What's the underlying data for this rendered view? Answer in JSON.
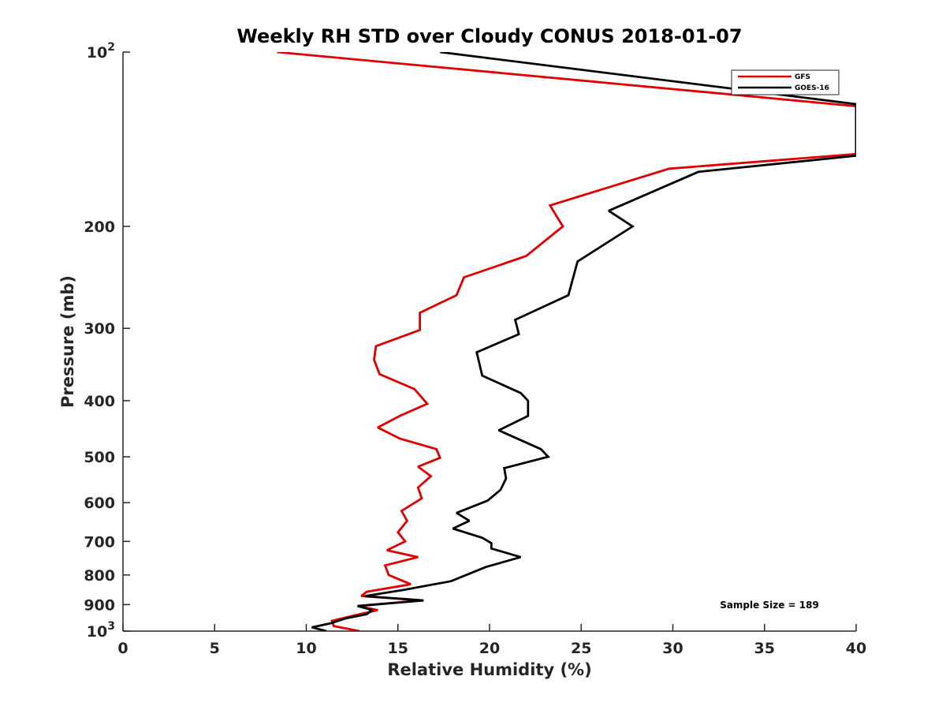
{
  "chart_data": {
    "type": "line",
    "title": "Weekly RH STD over Cloudy CONUS 2018-01-07",
    "xlabel": "Relative Humidity (%)",
    "ylabel": "Pressure (mb)",
    "xlim": [
      0,
      40
    ],
    "ylim": [
      100,
      1000
    ],
    "y_scale": "log",
    "y_reversed": true,
    "x_ticks": [
      0,
      5,
      10,
      15,
      20,
      25,
      30,
      35,
      40
    ],
    "x_tick_labels": [
      "0",
      "5",
      "10",
      "15",
      "20",
      "25",
      "30",
      "35",
      "40"
    ],
    "y_ticks": [
      100,
      200,
      300,
      400,
      500,
      600,
      700,
      800,
      900,
      1000
    ],
    "y_tick_labels": [
      {
        "base": "10",
        "exp": "2"
      },
      {
        "base": "200",
        "exp": ""
      },
      {
        "base": "300",
        "exp": ""
      },
      {
        "base": "400",
        "exp": ""
      },
      {
        "base": "500",
        "exp": ""
      },
      {
        "base": "600",
        "exp": ""
      },
      {
        "base": "700",
        "exp": ""
      },
      {
        "base": "800",
        "exp": ""
      },
      {
        "base": "900",
        "exp": ""
      },
      {
        "base": "10",
        "exp": "3"
      }
    ],
    "grid": false,
    "legend_position": "top-right",
    "annotation": "Sample Size = 189",
    "series": [
      {
        "name": "GFS",
        "color": "#e00000",
        "points": [
          [
            8.4,
            100
          ],
          [
            40.0,
            124
          ],
          [
            40.0,
            150
          ],
          [
            29.8,
            159
          ],
          [
            23.3,
            184
          ],
          [
            24.0,
            200
          ],
          [
            22.0,
            225
          ],
          [
            18.6,
            245
          ],
          [
            18.2,
            263
          ],
          [
            16.2,
            282
          ],
          [
            16.2,
            302
          ],
          [
            13.8,
            322
          ],
          [
            13.7,
            340
          ],
          [
            14.0,
            360
          ],
          [
            15.9,
            382
          ],
          [
            16.6,
            405
          ],
          [
            15.1,
            425
          ],
          [
            13.9,
            445
          ],
          [
            15.1,
            465
          ],
          [
            17.1,
            485
          ],
          [
            17.3,
            502
          ],
          [
            16.1,
            520
          ],
          [
            16.8,
            540
          ],
          [
            16.1,
            565
          ],
          [
            16.3,
            590
          ],
          [
            15.2,
            620
          ],
          [
            15.5,
            645
          ],
          [
            15.0,
            675
          ],
          [
            15.4,
            700
          ],
          [
            14.4,
            725
          ],
          [
            16.1,
            745
          ],
          [
            14.3,
            770
          ],
          [
            14.5,
            800
          ],
          [
            15.7,
            830
          ],
          [
            13.3,
            855
          ],
          [
            13.0,
            870
          ],
          [
            16.3,
            885
          ],
          [
            12.8,
            905
          ],
          [
            13.9,
            920
          ],
          [
            12.6,
            940
          ],
          [
            11.4,
            960
          ],
          [
            11.5,
            980
          ],
          [
            12.9,
            1000
          ]
        ]
      },
      {
        "name": "GOES-16",
        "color": "#000000",
        "points": [
          [
            17.3,
            100
          ],
          [
            40.0,
            123
          ],
          [
            40.0,
            151
          ],
          [
            31.4,
            161
          ],
          [
            26.5,
            188
          ],
          [
            27.8,
            200
          ],
          [
            24.8,
            230
          ],
          [
            24.3,
            263
          ],
          [
            21.4,
            290
          ],
          [
            21.6,
            307
          ],
          [
            19.3,
            330
          ],
          [
            19.6,
            362
          ],
          [
            21.7,
            388
          ],
          [
            22.1,
            400
          ],
          [
            22.1,
            425
          ],
          [
            20.5,
            450
          ],
          [
            22.8,
            485
          ],
          [
            23.2,
            500
          ],
          [
            20.8,
            523
          ],
          [
            20.9,
            545
          ],
          [
            20.6,
            570
          ],
          [
            19.9,
            595
          ],
          [
            18.2,
            625
          ],
          [
            18.9,
            645
          ],
          [
            18.0,
            665
          ],
          [
            19.6,
            690
          ],
          [
            20.1,
            705
          ],
          [
            20.1,
            720
          ],
          [
            21.7,
            745
          ],
          [
            19.8,
            775
          ],
          [
            17.9,
            820
          ],
          [
            15.2,
            850
          ],
          [
            13.2,
            870
          ],
          [
            16.4,
            885
          ],
          [
            12.8,
            905
          ],
          [
            13.6,
            920
          ],
          [
            13.3,
            935
          ],
          [
            12.2,
            950
          ],
          [
            11.3,
            970
          ],
          [
            10.3,
            985
          ],
          [
            11.1,
            1000
          ]
        ]
      }
    ]
  }
}
